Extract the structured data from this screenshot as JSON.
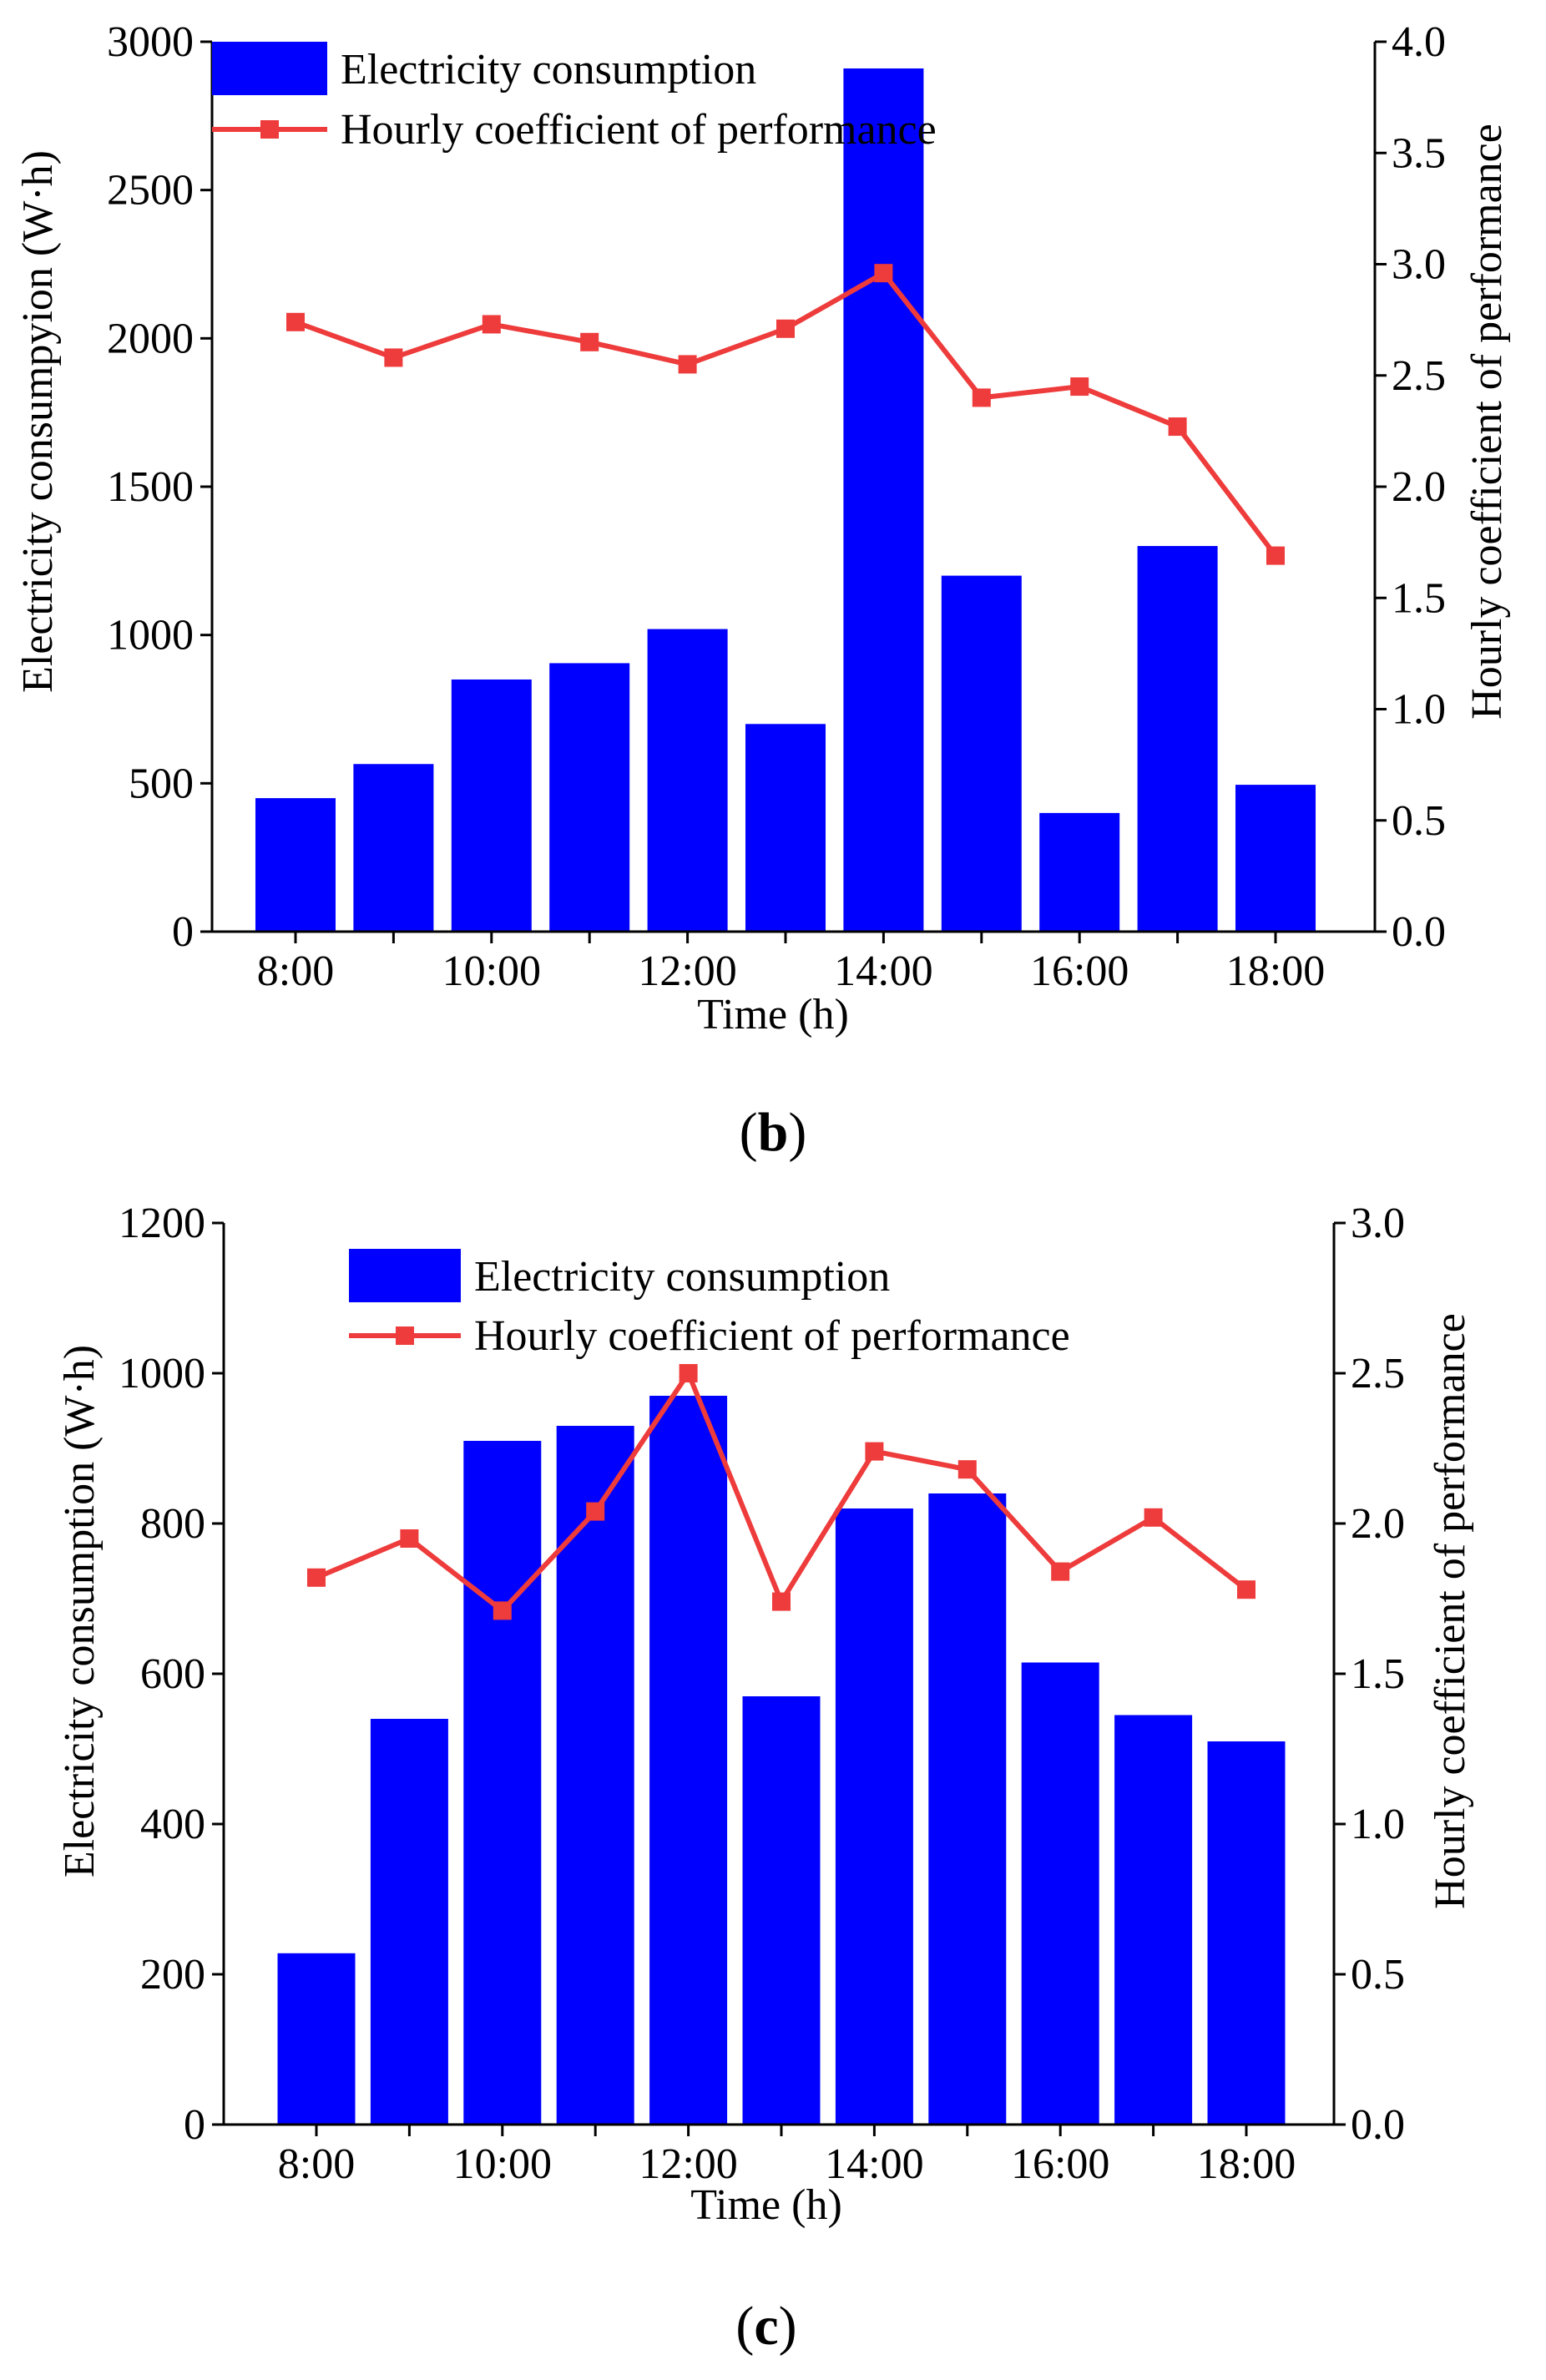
{
  "figure": {
    "colors": {
      "bar": "#0000FF",
      "line": "#EE3B3B",
      "axis": "#000000",
      "background": "#FFFFFF"
    }
  },
  "chart_data": [
    {
      "id": "b",
      "type": "bar",
      "panel_label": {
        "open": "(",
        "letter": "b",
        "close": ")"
      },
      "xlabel": "Time (h)",
      "ylabel": "Electricity consumpyion (W·h)",
      "y2label": "Hourly coefficient of performance",
      "categories": [
        "8:00",
        "9:00",
        "10:00",
        "11:00",
        "12:00",
        "13:00",
        "14:00",
        "15:00",
        "16:00",
        "17:00",
        "18:00"
      ],
      "x_tick_labels": [
        "8:00",
        "10:00",
        "12:00",
        "14:00",
        "16:00",
        "18:00"
      ],
      "ylim": [
        0,
        3000
      ],
      "y_ticks": [
        0,
        500,
        1000,
        1500,
        2000,
        2500,
        3000
      ],
      "y2lim": [
        0,
        4
      ],
      "y2_ticks": [
        "0.0",
        "0.5",
        "1.0",
        "1.5",
        "2.0",
        "2.5",
        "3.0",
        "3.5",
        "4.0"
      ],
      "series": [
        {
          "name": "Electricity consumption",
          "axis": "left",
          "kind": "bar",
          "values": [
            450,
            565,
            850,
            905,
            1020,
            700,
            2910,
            1200,
            400,
            1300,
            495
          ]
        },
        {
          "name": "Hourly coefficient of performance",
          "axis": "right",
          "kind": "line",
          "values": [
            2.74,
            2.58,
            2.73,
            2.65,
            2.55,
            2.71,
            2.96,
            2.4,
            2.45,
            2.27,
            1.69
          ]
        }
      ],
      "legend_position": "top-left"
    },
    {
      "id": "c",
      "type": "bar",
      "panel_label": {
        "open": "(",
        "letter": "c",
        "close": ")"
      },
      "xlabel": "Time (h)",
      "ylabel": "Electricity consumption (W·h)",
      "y2label": "Hourly coefficient of performance",
      "categories": [
        "8:00",
        "9:00",
        "10:00",
        "11:00",
        "12:00",
        "13:00",
        "14:00",
        "15:00",
        "16:00",
        "17:00",
        "18:00"
      ],
      "x_tick_labels": [
        "8:00",
        "10:00",
        "12:00",
        "14:00",
        "16:00",
        "18:00"
      ],
      "ylim": [
        0,
        1200
      ],
      "y_ticks": [
        0,
        200,
        400,
        600,
        800,
        1000,
        1200
      ],
      "y2lim": [
        0,
        3
      ],
      "y2_ticks": [
        "0.0",
        "0.5",
        "1.0",
        "1.5",
        "2.0",
        "2.5",
        "3.0"
      ],
      "series": [
        {
          "name": "Electricity consumption",
          "axis": "left",
          "kind": "bar",
          "values": [
            228,
            540,
            910,
            930,
            970,
            570,
            820,
            840,
            615,
            545,
            510
          ]
        },
        {
          "name": "Hourly coefficient of performance",
          "axis": "right",
          "kind": "line",
          "values": [
            1.82,
            1.95,
            1.71,
            2.04,
            2.5,
            1.74,
            2.24,
            2.18,
            1.84,
            2.02,
            1.78
          ]
        }
      ],
      "legend_position": "top-center"
    }
  ]
}
